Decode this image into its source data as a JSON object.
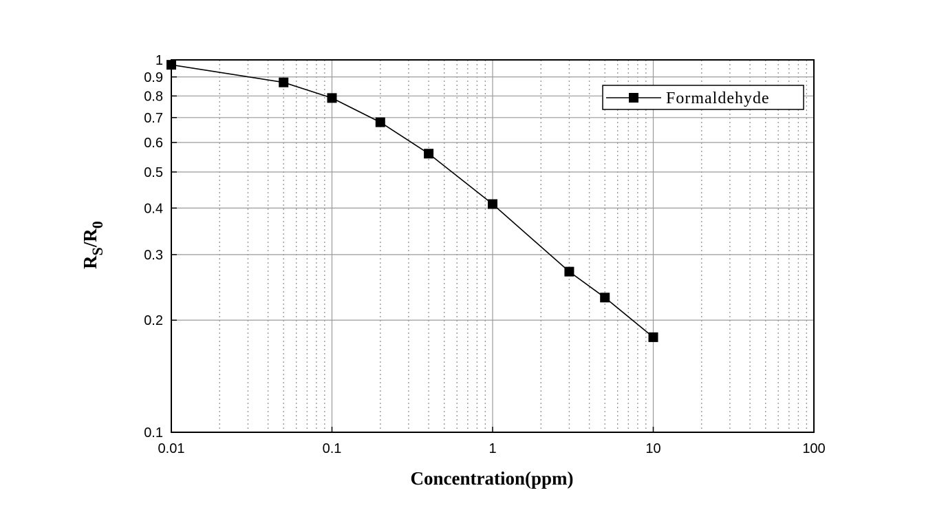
{
  "chart_data": {
    "type": "line",
    "xscale": "log",
    "yscale": "log",
    "xlim": [
      0.01,
      100
    ],
    "ylim": [
      0.1,
      1
    ],
    "xlabel": "Concentration(ppm)",
    "ylabel": {
      "main": "R",
      "sub1": "S",
      "slash": "/R",
      "sub2": "0"
    },
    "x_ticks": [
      {
        "value": 0.01,
        "label": "0.01"
      },
      {
        "value": 0.1,
        "label": "0.1"
      },
      {
        "value": 1,
        "label": "1"
      },
      {
        "value": 10,
        "label": "10"
      },
      {
        "value": 100,
        "label": "100"
      }
    ],
    "y_ticks": [
      {
        "value": 0.1,
        "label": "0.1"
      },
      {
        "value": 0.2,
        "label": "0.2"
      },
      {
        "value": 0.3,
        "label": "0.3"
      },
      {
        "value": 0.4,
        "label": "0.4"
      },
      {
        "value": 0.5,
        "label": "0.5"
      },
      {
        "value": 0.6,
        "label": "0.6"
      },
      {
        "value": 0.7,
        "label": "0.7"
      },
      {
        "value": 0.8,
        "label": "0.8"
      },
      {
        "value": 0.9,
        "label": "0.9"
      },
      {
        "value": 1,
        "label": "1"
      }
    ],
    "grid": true,
    "legend": "top-right",
    "series": [
      {
        "name": "Formaldehyde",
        "marker": "square",
        "color": "#000000",
        "x": [
          0.01,
          0.05,
          0.1,
          0.2,
          0.4,
          1,
          3,
          5,
          10
        ],
        "y": [
          0.97,
          0.87,
          0.79,
          0.68,
          0.56,
          0.41,
          0.27,
          0.23,
          0.18
        ]
      }
    ]
  }
}
